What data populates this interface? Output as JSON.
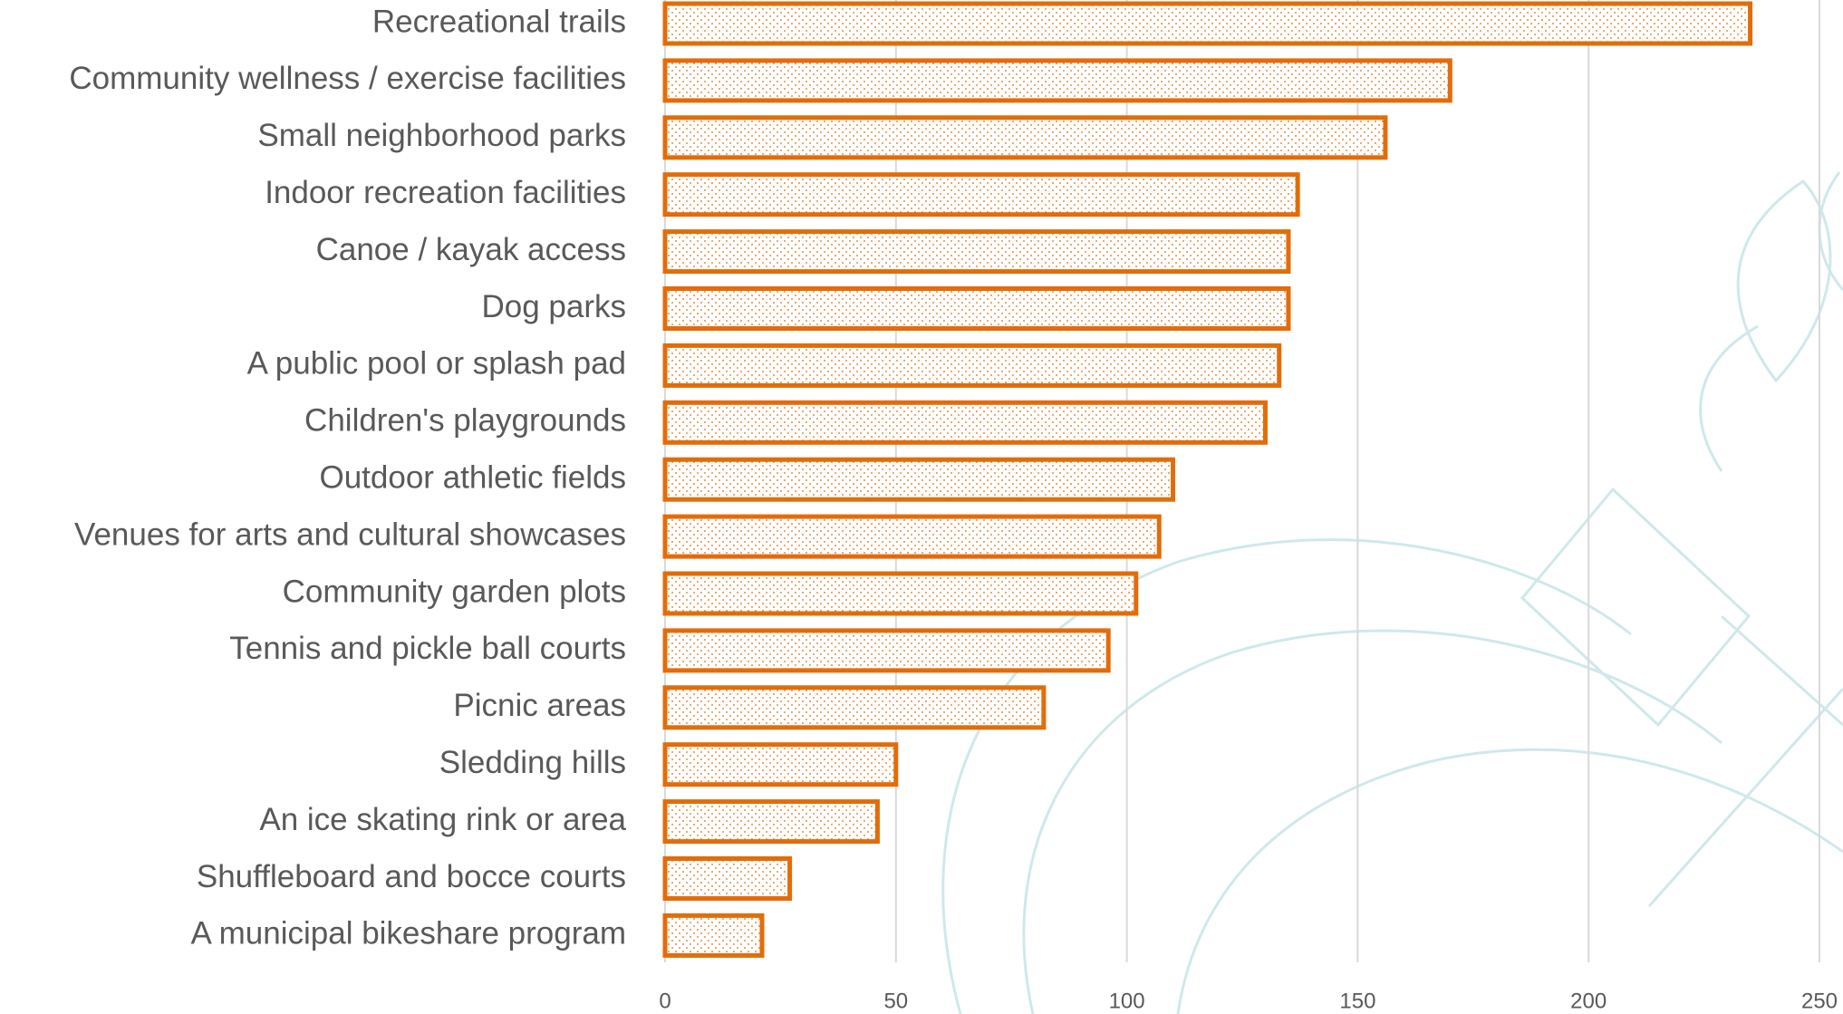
{
  "chart_data": {
    "type": "barh",
    "categories": [
      "Recreational trails",
      "Community wellness / exercise facilities",
      "Small neighborhood parks",
      "Indoor recreation facilities",
      "Canoe / kayak access",
      "Dog parks",
      "A public pool or splash pad",
      "Children's playgrounds",
      "Outdoor athletic fields",
      "Venues for arts and cultural showcases",
      "Community garden plots",
      "Tennis and pickle ball courts",
      "Picnic areas",
      "Sledding hills",
      "An ice skating rink or area",
      "Shuffleboard and bocce courts",
      "A municipal bikeshare program"
    ],
    "values": [
      235,
      170,
      156,
      137,
      135,
      135,
      133,
      130,
      110,
      107,
      102,
      96,
      82,
      50,
      46,
      27,
      21
    ],
    "color": "#e36c0a",
    "xlim": [
      0,
      250
    ],
    "xticks": [
      0,
      50,
      100,
      150,
      200,
      250
    ],
    "grid": true
  }
}
